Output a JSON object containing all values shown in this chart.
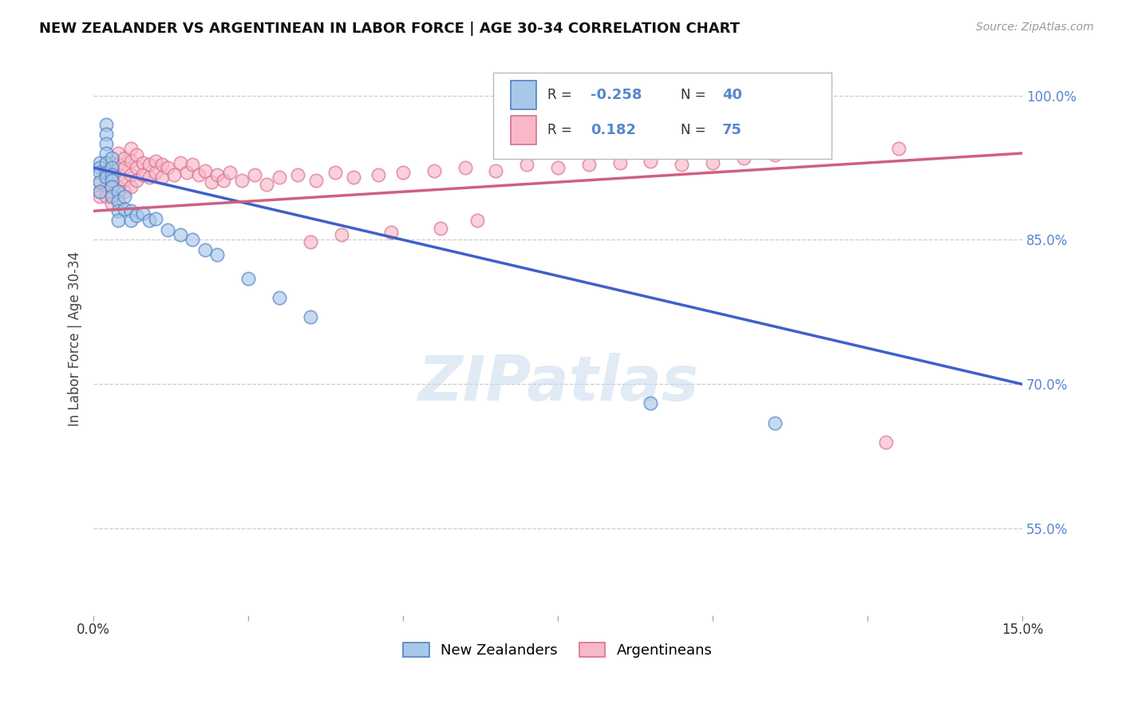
{
  "title": "NEW ZEALANDER VS ARGENTINEAN IN LABOR FORCE | AGE 30-34 CORRELATION CHART",
  "source": "Source: ZipAtlas.com",
  "ylabel": "In Labor Force | Age 30-34",
  "x_range": [
    0.0,
    0.15
  ],
  "y_range": [
    0.46,
    1.035
  ],
  "y_ticks": [
    0.55,
    0.7,
    0.85,
    1.0
  ],
  "y_tick_labels": [
    "55.0%",
    "70.0%",
    "85.0%",
    "100.0%"
  ],
  "x_ticks": [
    0.0,
    0.025,
    0.05,
    0.075,
    0.1,
    0.125,
    0.15
  ],
  "r_nz": -0.258,
  "n_nz": 40,
  "r_arg": 0.182,
  "n_arg": 75,
  "nz_face_color": "#a8c8e8",
  "nz_edge_color": "#5080c8",
  "arg_face_color": "#f8b8c8",
  "arg_edge_color": "#d87090",
  "nz_line_color": "#4060c8",
  "arg_line_color": "#d06080",
  "legend_nz_label": "New Zealanders",
  "legend_arg_label": "Argentineans",
  "nz_x": [
    0.001,
    0.001,
    0.001,
    0.001,
    0.001,
    0.002,
    0.002,
    0.002,
    0.002,
    0.002,
    0.002,
    0.002,
    0.003,
    0.003,
    0.003,
    0.003,
    0.003,
    0.003,
    0.004,
    0.004,
    0.004,
    0.004,
    0.005,
    0.005,
    0.006,
    0.006,
    0.007,
    0.008,
    0.009,
    0.01,
    0.012,
    0.014,
    0.016,
    0.018,
    0.02,
    0.025,
    0.03,
    0.035,
    0.09,
    0.11
  ],
  "nz_y": [
    0.93,
    0.925,
    0.92,
    0.91,
    0.9,
    0.97,
    0.96,
    0.95,
    0.94,
    0.93,
    0.92,
    0.915,
    0.935,
    0.925,
    0.918,
    0.912,
    0.905,
    0.895,
    0.9,
    0.89,
    0.88,
    0.87,
    0.895,
    0.882,
    0.88,
    0.87,
    0.875,
    0.878,
    0.87,
    0.872,
    0.86,
    0.855,
    0.85,
    0.84,
    0.835,
    0.81,
    0.79,
    0.77,
    0.68,
    0.66
  ],
  "arg_x": [
    0.001,
    0.001,
    0.001,
    0.002,
    0.002,
    0.002,
    0.002,
    0.003,
    0.003,
    0.003,
    0.003,
    0.003,
    0.004,
    0.004,
    0.004,
    0.004,
    0.005,
    0.005,
    0.005,
    0.005,
    0.006,
    0.006,
    0.006,
    0.006,
    0.007,
    0.007,
    0.007,
    0.008,
    0.008,
    0.009,
    0.009,
    0.01,
    0.01,
    0.011,
    0.011,
    0.012,
    0.013,
    0.014,
    0.015,
    0.016,
    0.017,
    0.018,
    0.019,
    0.02,
    0.021,
    0.022,
    0.024,
    0.026,
    0.028,
    0.03,
    0.033,
    0.036,
    0.039,
    0.042,
    0.046,
    0.05,
    0.055,
    0.06,
    0.065,
    0.07,
    0.075,
    0.08,
    0.085,
    0.09,
    0.095,
    0.1,
    0.105,
    0.11,
    0.04,
    0.048,
    0.056,
    0.062,
    0.035,
    0.13,
    0.128
  ],
  "arg_y": [
    0.9,
    0.91,
    0.895,
    0.92,
    0.915,
    0.905,
    0.895,
    0.93,
    0.92,
    0.912,
    0.898,
    0.888,
    0.94,
    0.928,
    0.918,
    0.905,
    0.935,
    0.925,
    0.912,
    0.9,
    0.945,
    0.932,
    0.918,
    0.905,
    0.938,
    0.925,
    0.912,
    0.93,
    0.918,
    0.928,
    0.915,
    0.932,
    0.92,
    0.928,
    0.915,
    0.925,
    0.918,
    0.93,
    0.92,
    0.928,
    0.918,
    0.922,
    0.91,
    0.918,
    0.912,
    0.92,
    0.912,
    0.918,
    0.908,
    0.915,
    0.918,
    0.912,
    0.92,
    0.915,
    0.918,
    0.92,
    0.922,
    0.925,
    0.922,
    0.928,
    0.925,
    0.928,
    0.93,
    0.932,
    0.928,
    0.93,
    0.935,
    0.938,
    0.855,
    0.858,
    0.862,
    0.87,
    0.848,
    0.945,
    0.64
  ],
  "watermark_text": "ZIPatlas",
  "bg_color": "#ffffff",
  "grid_color": "#cccccc",
  "right_tick_color": "#5588cc",
  "title_fontsize": 13,
  "source_fontsize": 10
}
